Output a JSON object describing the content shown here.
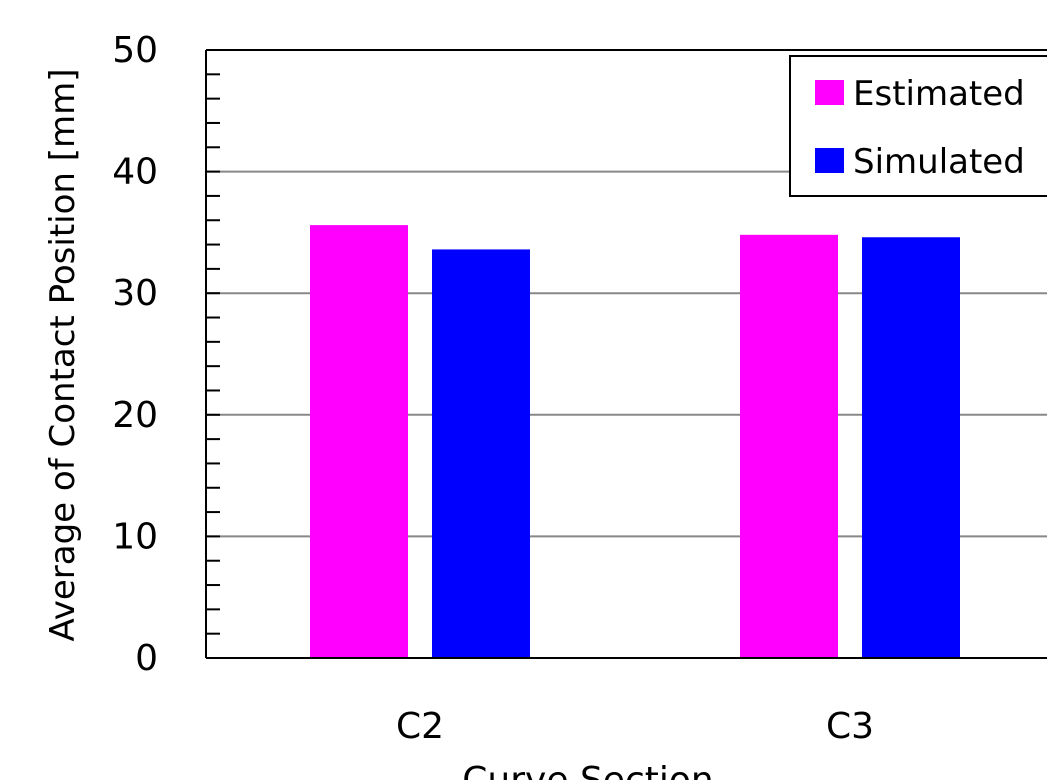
{
  "chart_data": {
    "type": "bar",
    "title": "",
    "xlabel": "Curve Section",
    "ylabel": "Average of Contact Position [mm]",
    "categories": [
      "C2",
      "C3"
    ],
    "series": [
      {
        "name": "Estimated",
        "values": [
          35.6,
          34.8
        ],
        "color": "#ff00ff"
      },
      {
        "name": "Simulated",
        "values": [
          33.6,
          34.6
        ],
        "color": "#0000ff"
      }
    ],
    "ylim": [
      0,
      50
    ],
    "yticks": [
      "0",
      "10",
      "20",
      "30",
      "40",
      "50"
    ],
    "grid": true,
    "legend_position": "top-right"
  }
}
